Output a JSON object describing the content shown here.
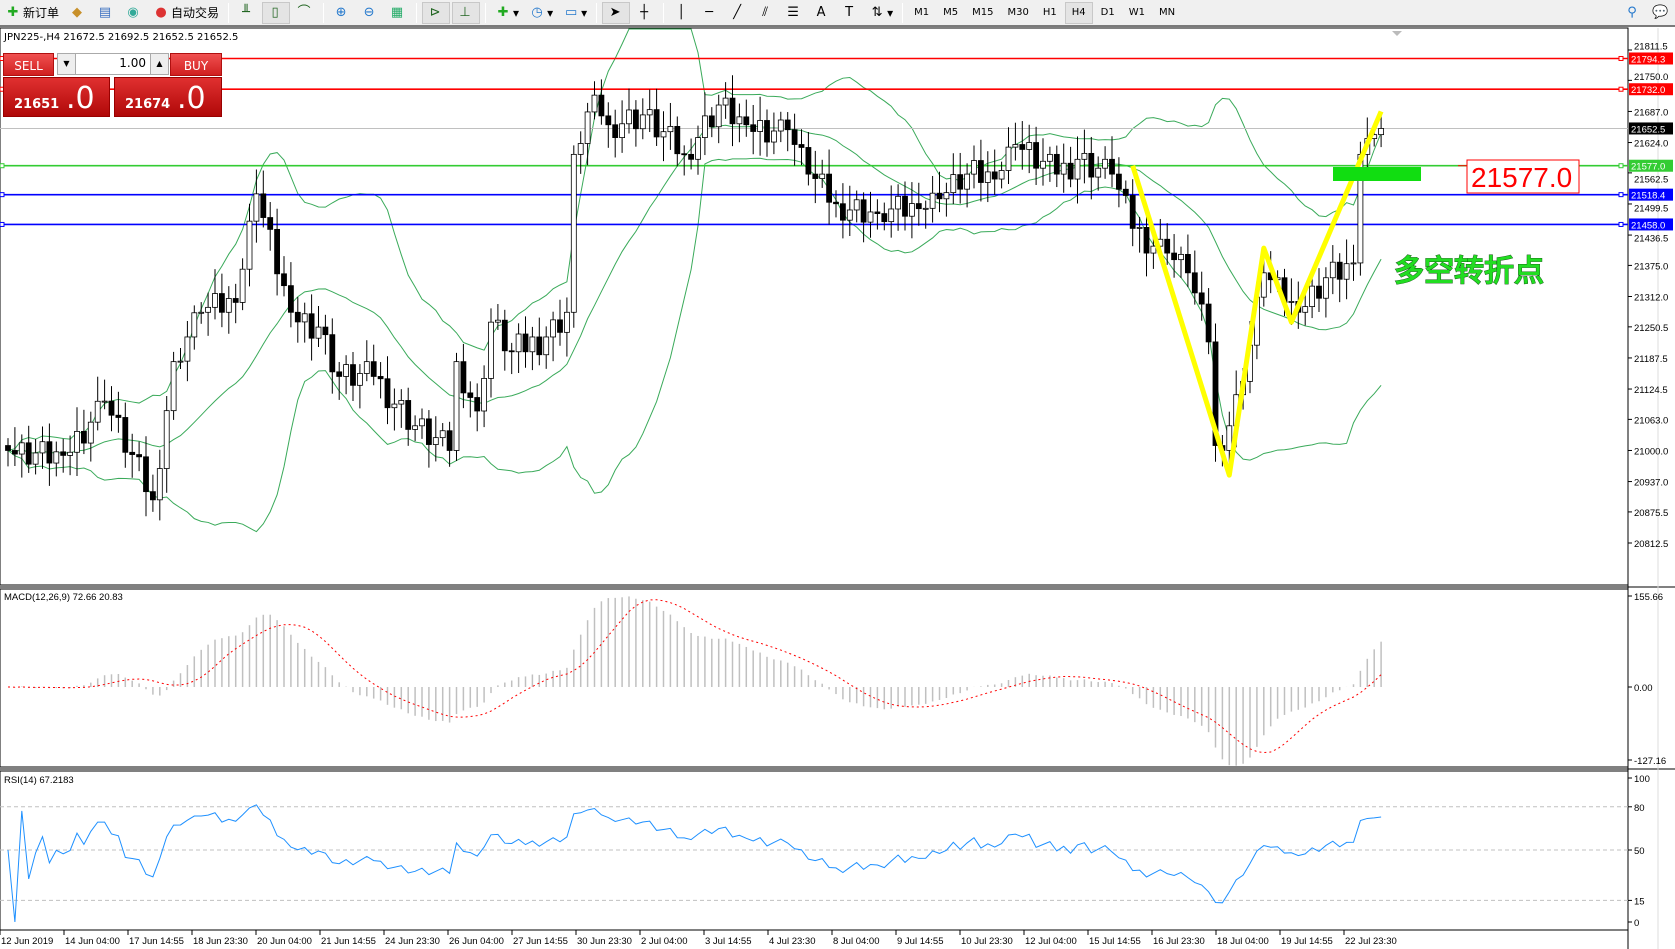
{
  "toolbar": {
    "new_order": "新订单",
    "auto_trading": "自动交易",
    "timeframes": [
      "M1",
      "M5",
      "M15",
      "M30",
      "H1",
      "H4",
      "D1",
      "W1",
      "MN"
    ],
    "active_timeframe": "H4"
  },
  "chart": {
    "title": "JPN225-,H4  21672.5 21692.5 21652.5 21652.5",
    "sell_label": "SELL",
    "buy_label": "BUY",
    "lot": "1.00",
    "sell_price": "21651",
    "sell_frac": ".0",
    "buy_price": "21674",
    "buy_frac": ".0",
    "annotation_price": "21577.0",
    "annotation_text": "多空转折点",
    "colors": {
      "resistance": "#ff0000",
      "pivot": "#00cc00",
      "support": "#0000ff",
      "bands": "#3aaa5a",
      "zigzag": "#ffff00",
      "signal": "#ff0000",
      "rsi": "#1e90ff"
    }
  },
  "chart_data": {
    "type": "candlestick",
    "symbol": "JPN225-",
    "timeframe": "H4",
    "ylim": [
      20812.5,
      21811.5
    ],
    "y_ticks": [
      "21811.5",
      "21750.0",
      "21687.0",
      "21624.0",
      "21562.5",
      "21499.5",
      "21436.5",
      "21375.0",
      "21312.0",
      "21250.5",
      "21187.5",
      "21124.5",
      "21063.0",
      "21000.0",
      "20937.0",
      "20875.5",
      "20812.5"
    ],
    "x_ticks": [
      "12 Jun 2019",
      "14 Jun 04:00",
      "17 Jun 14:55",
      "18 Jun 23:30",
      "20 Jun 04:00",
      "21 Jun 14:55",
      "24 Jun 23:30",
      "26 Jun 04:00",
      "27 Jun 14:55",
      "30 Jun 23:30",
      "2 Jul 04:00",
      "3 Jul 14:55",
      "4 Jul 23:30",
      "8 Jul 04:00",
      "9 Jul 14:55",
      "10 Jul 23:30",
      "12 Jul 04:00",
      "15 Jul 14:55",
      "16 Jul 23:30",
      "18 Jul 04:00",
      "19 Jul 14:55",
      "22 Jul 23:30"
    ],
    "close_path": [
      [
        0,
        21000
      ],
      [
        8,
        20990
      ],
      [
        14,
        21100
      ],
      [
        21,
        20900
      ],
      [
        24,
        21180
      ],
      [
        28,
        21280
      ],
      [
        33,
        21300
      ],
      [
        36,
        21520
      ],
      [
        41,
        21280
      ],
      [
        45,
        21250
      ],
      [
        48,
        21150
      ],
      [
        53,
        21150
      ],
      [
        59,
        21050
      ],
      [
        64,
        21000
      ],
      [
        65,
        21180
      ],
      [
        68,
        21080
      ],
      [
        70,
        21260
      ],
      [
        73,
        21200
      ],
      [
        78,
        21230
      ],
      [
        81,
        21280
      ],
      [
        82,
        21600
      ],
      [
        85,
        21720
      ],
      [
        87,
        21660
      ],
      [
        92,
        21680
      ],
      [
        98,
        21600
      ],
      [
        103,
        21700
      ],
      [
        107,
        21660
      ],
      [
        113,
        21650
      ],
      [
        116,
        21560
      ],
      [
        120,
        21500
      ],
      [
        126,
        21480
      ],
      [
        132,
        21490
      ],
      [
        135,
        21510
      ],
      [
        139,
        21560
      ],
      [
        143,
        21550
      ],
      [
        146,
        21620
      ],
      [
        152,
        21560
      ],
      [
        155,
        21590
      ],
      [
        160,
        21560
      ],
      [
        163,
        21450
      ],
      [
        168,
        21400
      ],
      [
        171,
        21360
      ],
      [
        174,
        21220
      ],
      [
        175,
        21010
      ],
      [
        177,
        21050
      ],
      [
        179,
        21140
      ],
      [
        182,
        21360
      ],
      [
        185,
        21300
      ],
      [
        187,
        21280
      ],
      [
        191,
        21350
      ],
      [
        195,
        21380
      ],
      [
        196,
        21600
      ],
      [
        198,
        21640
      ],
      [
        199,
        21652.5
      ]
    ],
    "horizontal_lines": [
      {
        "price": "21794.3",
        "color": "#ff0000"
      },
      {
        "price": "21732.0",
        "color": "#ff0000"
      },
      {
        "price": "21652.5",
        "color": "#000000"
      },
      {
        "price": "21577.0",
        "color": "#33cc33"
      },
      {
        "price": "21518.4",
        "color": "#0000ff"
      },
      {
        "price": "21458.0",
        "color": "#0000ff"
      }
    ],
    "zigzag": [
      [
        163,
        21577
      ],
      [
        177,
        20950
      ],
      [
        182,
        21410
      ],
      [
        186,
        21260
      ],
      [
        199,
        21687
      ]
    ],
    "macd": {
      "label": "MACD(12,26,9) 72.66 20.83",
      "ylim": [
        -127.16,
        155.66
      ],
      "ticks": [
        "155.66",
        "0.00",
        "-127.16"
      ]
    },
    "rsi": {
      "label": "RSI(14) 67.2183",
      "ylim": [
        0,
        100
      ],
      "ticks": [
        "100",
        "80",
        "50",
        "15",
        "0"
      ],
      "levels": [
        80,
        50,
        15
      ]
    }
  }
}
